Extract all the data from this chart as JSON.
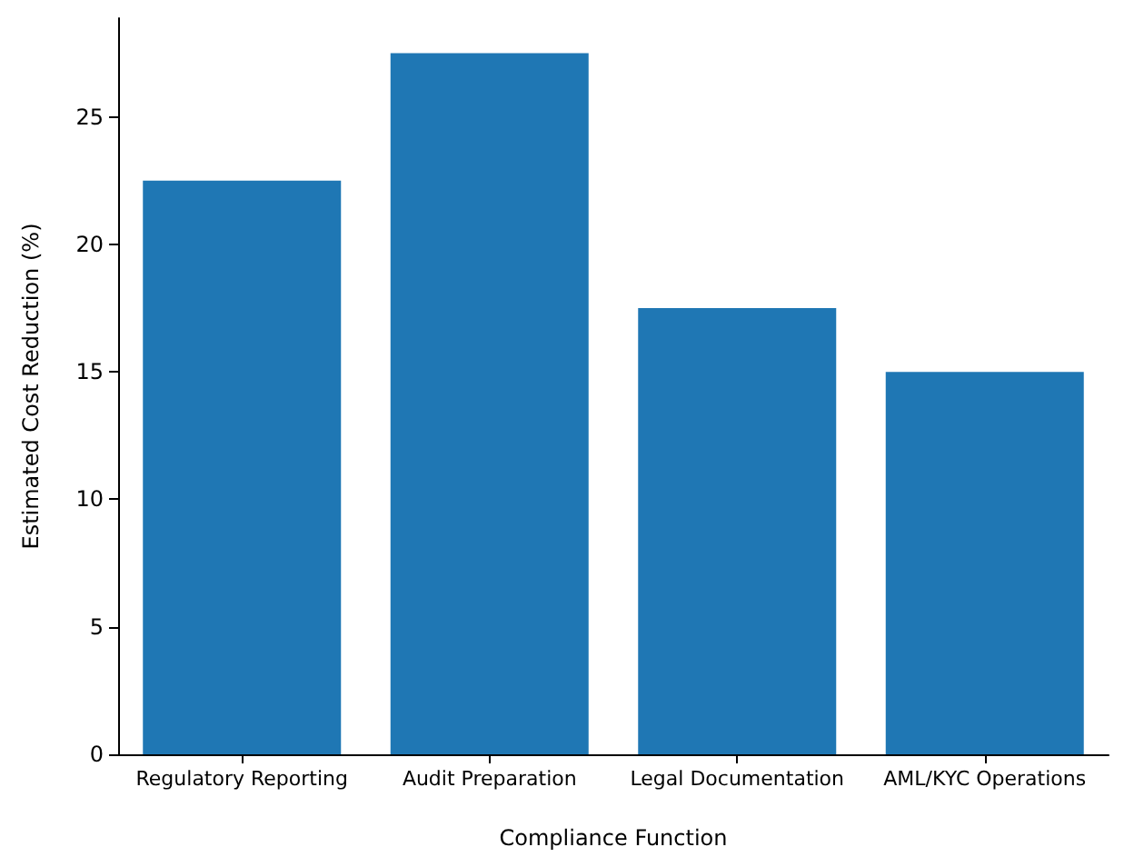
{
  "chart_data": {
    "type": "bar",
    "xlabel": "Compliance Function",
    "ylabel": "Estimated Cost Reduction (%)",
    "categories": [
      "Regulatory Reporting",
      "Audit Preparation",
      "Legal Documentation",
      "AML/KYC Operations"
    ],
    "values": [
      22.5,
      27.5,
      17.5,
      15
    ],
    "color": "#1f77b4",
    "ylim": [
      0,
      28.875
    ],
    "yticks": [
      0,
      5,
      10,
      15,
      20,
      25
    ],
    "grid": false
  }
}
